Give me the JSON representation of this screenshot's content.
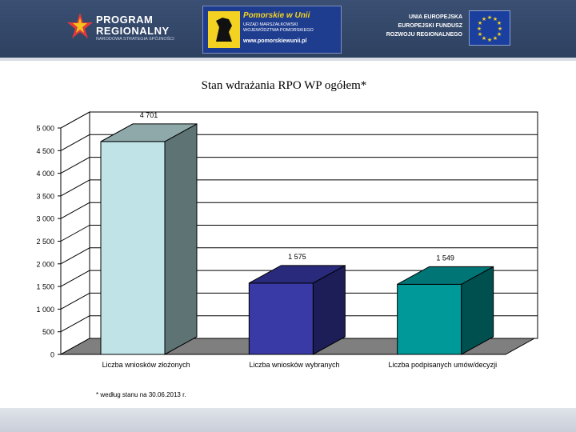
{
  "header": {
    "program_logo": {
      "line1": "PROGRAM",
      "line2": "REGIONALNY",
      "tagline": "NARODOWA STRATEGIA SPÓJNOŚCI"
    },
    "pomorskie_logo": {
      "title": "Pomorskie w Unii",
      "office": "URZĄD MARSZAŁKOWSKI\nWOJEWÓDZTWA POMORSKIEGO",
      "url": "www.pomorskiewunii.pl"
    },
    "eu_logo": {
      "text": "UNIA EUROPEJSKA\nEUROPEJSKI FUNDUSZ\nROZWOJU REGIONALNEGO"
    }
  },
  "footnote": "* według stanu na 30.06.2013 r.",
  "chart_data": {
    "type": "bar",
    "title": "Stan wdrażania RPO WP ogółem*",
    "categories": [
      "Liczba wniosków złożonych",
      "Liczba wniosków wybranych",
      "Liczba podpisanych umów/decyzji"
    ],
    "values": [
      4701,
      1575,
      1549
    ],
    "value_labels": [
      "4 701",
      "1 575",
      "1 549"
    ],
    "ylim": [
      0,
      5000
    ],
    "yticks": [
      0,
      500,
      1000,
      1500,
      2000,
      2500,
      3000,
      3500,
      4000,
      4500,
      5000
    ],
    "ytick_labels": [
      "0",
      "500",
      "1 000",
      "1 500",
      "2 000",
      "2 500",
      "3 000",
      "3 500",
      "4 000",
      "4 500",
      "5 000"
    ],
    "colors": {
      "bars": [
        {
          "front": "#bfe3e6",
          "side": "#5e7374",
          "top": "#8fa9ab"
        },
        {
          "front": "#3a3aa6",
          "side": "#1d1d58",
          "top": "#2a2a7d"
        },
        {
          "front": "#009999",
          "side": "#005050",
          "top": "#007575"
        }
      ],
      "floor": "#7f7f7f",
      "grid": "#000000"
    },
    "grid": true,
    "legend": "none"
  }
}
